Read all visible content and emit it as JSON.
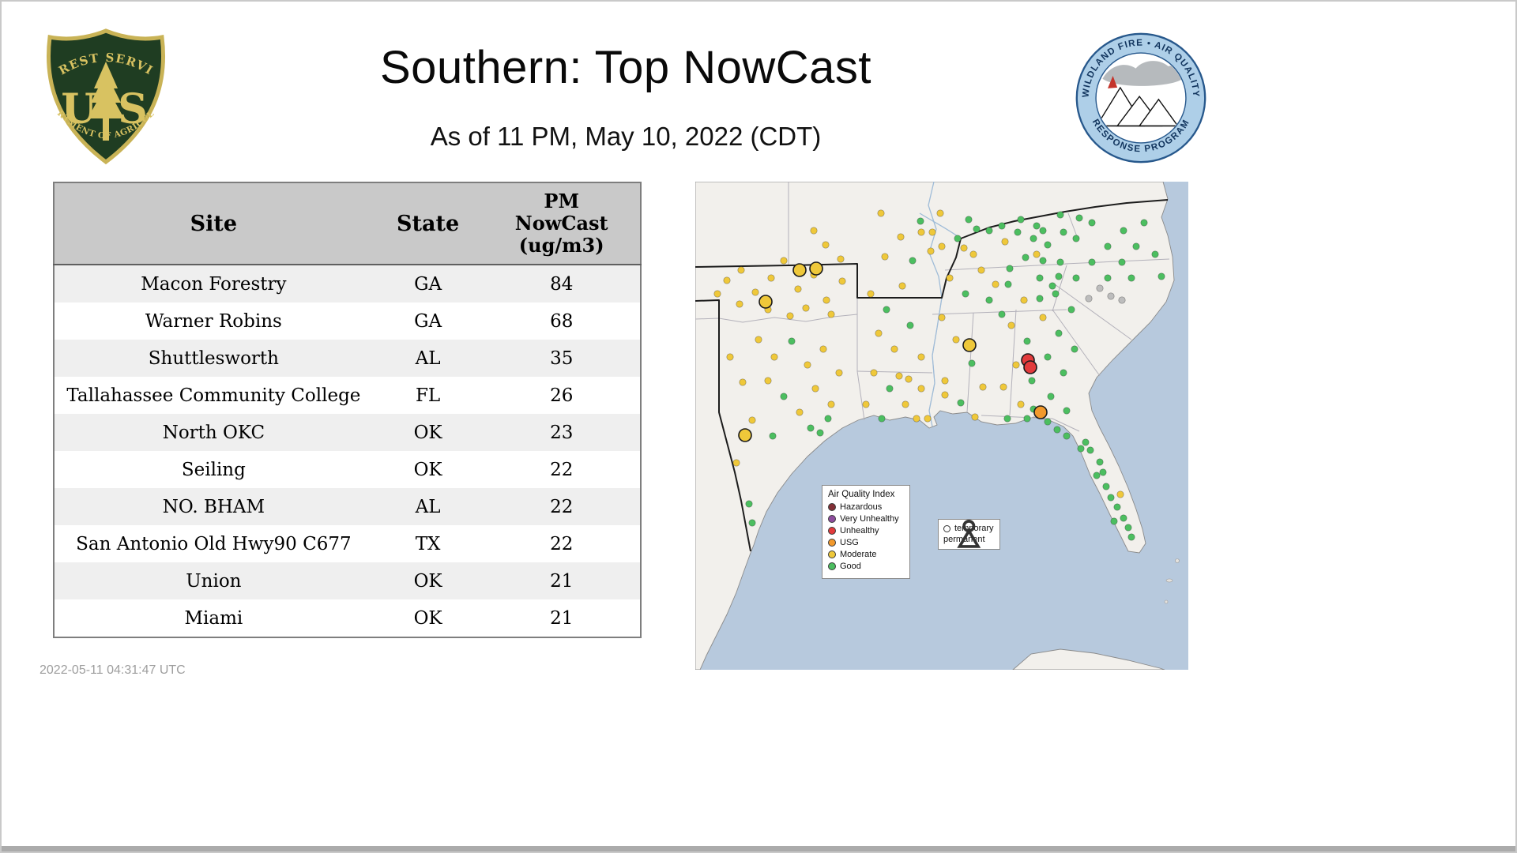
{
  "header": {
    "title": "Southern: Top NowCast",
    "subtitle": "As of 11 PM, May 10, 2022 (CDT)"
  },
  "footer": {
    "timestamp": "2022-05-11 04:31:47 UTC"
  },
  "logos": {
    "forest_service": {
      "top_arc": "FOREST SERVICE",
      "left_letter": "U",
      "right_letter": "S",
      "bottom_arc": "DEPARTMENT OF AGRICULTURE"
    },
    "wfaqrp": {
      "top_arc": "WILDLAND FIRE • AIR QUALITY",
      "bottom_arc": "RESPONSE PROGRAM"
    }
  },
  "chart_data": {
    "type": "table",
    "title": "Southern: Top NowCast",
    "columns": [
      "Site",
      "State",
      "PM NowCast (ug/m3)"
    ],
    "rows": [
      [
        "Macon Forestry",
        "GA",
        "84"
      ],
      [
        "Warner Robins",
        "GA",
        "68"
      ],
      [
        "Shuttlesworth",
        "AL",
        "35"
      ],
      [
        "Tallahassee Community College",
        "FL",
        "26"
      ],
      [
        "North OKC",
        "OK",
        "23"
      ],
      [
        "Seiling",
        "OK",
        "22"
      ],
      [
        "NO. BHAM",
        "AL",
        "22"
      ],
      [
        "San Antonio Old Hwy90 C677",
        "TX",
        "22"
      ],
      [
        "Union",
        "OK",
        "21"
      ],
      [
        "Miami",
        "OK",
        "21"
      ]
    ]
  },
  "table_header": {
    "site": "Site",
    "state": "State",
    "pm": "PM\nNowCast\n(ug/m3)"
  },
  "map": {
    "palette": {
      "good": "#4CBE60",
      "moderate": "#EFC83A",
      "usg": "#F2992C",
      "unhealthy": "#E23B3C",
      "very_unhealthy": "#8E4D9E",
      "hazardous": "#822F36",
      "inactive": "#BDBDBD"
    },
    "colors": {
      "water": "#b7c9dd",
      "land": "#f2f0ec",
      "state_line": "#b3b1ba",
      "region_outline": "#1c1c1c",
      "river": "#9fbcd8"
    },
    "aqi_legend": {
      "title": "Air Quality Index",
      "items": [
        {
          "label": "Hazardous",
          "key": "hazardous"
        },
        {
          "label": "Very Unhealthy",
          "key": "very_unhealthy"
        },
        {
          "label": "Unhealthy",
          "key": "unhealthy"
        },
        {
          "label": "USG",
          "key": "usg"
        },
        {
          "label": "Moderate",
          "key": "moderate"
        },
        {
          "label": "Good",
          "key": "good"
        }
      ]
    },
    "marker_legend": {
      "temporary": "temporary",
      "permanent": "permanent"
    },
    "dots": [
      [
        40,
        125,
        "m"
      ],
      [
        58,
        112,
        "m"
      ],
      [
        76,
        140,
        "m"
      ],
      [
        96,
        122,
        "m"
      ],
      [
        112,
        100,
        "m"
      ],
      [
        130,
        136,
        "m"
      ],
      [
        150,
        118,
        "m"
      ],
      [
        166,
        150,
        "m"
      ],
      [
        186,
        126,
        "m"
      ],
      [
        92,
        162,
        "m"
      ],
      [
        56,
        155,
        "m"
      ],
      [
        140,
        160,
        "m"
      ],
      [
        120,
        170,
        "m"
      ],
      [
        172,
        168,
        "m"
      ],
      [
        28,
        142,
        "m"
      ],
      [
        184,
        98,
        "m"
      ],
      [
        165,
        80,
        "m"
      ],
      [
        150,
        62,
        "m"
      ],
      [
        132,
        112,
        "m",
        "l"
      ],
      [
        153,
        110,
        "m",
        "l"
      ],
      [
        89,
        152,
        "m",
        "l"
      ],
      [
        235,
        40,
        "m"
      ],
      [
        260,
        70,
        "m"
      ],
      [
        285,
        50,
        "g"
      ],
      [
        298,
        88,
        "m"
      ],
      [
        240,
        95,
        "m"
      ],
      [
        275,
        100,
        "g"
      ],
      [
        310,
        40,
        "m"
      ],
      [
        286,
        64,
        "m"
      ],
      [
        80,
        200,
        "m"
      ],
      [
        100,
        222,
        "m"
      ],
      [
        122,
        202,
        "g"
      ],
      [
        142,
        232,
        "m"
      ],
      [
        162,
        212,
        "m"
      ],
      [
        92,
        252,
        "m"
      ],
      [
        112,
        272,
        "g"
      ],
      [
        132,
        292,
        "m"
      ],
      [
        152,
        262,
        "m"
      ],
      [
        172,
        282,
        "m"
      ],
      [
        182,
        242,
        "m"
      ],
      [
        72,
        302,
        "m"
      ],
      [
        98,
        322,
        "g"
      ],
      [
        158,
        318,
        "g"
      ],
      [
        146,
        312,
        "g"
      ],
      [
        168,
        300,
        "g"
      ],
      [
        52,
        356,
        "m"
      ],
      [
        72,
        432,
        "g"
      ],
      [
        68,
        408,
        "g"
      ],
      [
        60,
        254,
        "m"
      ],
      [
        44,
        222,
        "m"
      ],
      [
        63,
        321,
        "m",
        "l"
      ],
      [
        222,
        142,
        "m"
      ],
      [
        242,
        162,
        "g"
      ],
      [
        262,
        132,
        "m"
      ],
      [
        232,
        192,
        "m"
      ],
      [
        252,
        212,
        "m"
      ],
      [
        272,
        182,
        "g"
      ],
      [
        286,
        222,
        "m"
      ],
      [
        226,
        242,
        "m"
      ],
      [
        246,
        262,
        "g"
      ],
      [
        266,
        282,
        "m"
      ],
      [
        286,
        262,
        "m"
      ],
      [
        294,
        300,
        "m"
      ],
      [
        216,
        282,
        "m"
      ],
      [
        236,
        300,
        "g"
      ],
      [
        258,
        246,
        "m"
      ],
      [
        280,
        300,
        "m"
      ],
      [
        270,
        250,
        "m"
      ],
      [
        312,
        82,
        "m"
      ],
      [
        332,
        72,
        "g"
      ],
      [
        352,
        92,
        "m"
      ],
      [
        322,
        122,
        "m"
      ],
      [
        342,
        142,
        "g"
      ],
      [
        362,
        112,
        "m"
      ],
      [
        312,
        172,
        "m"
      ],
      [
        330,
        200,
        "m"
      ],
      [
        350,
        230,
        "g"
      ],
      [
        364,
        260,
        "m"
      ],
      [
        316,
        252,
        "m"
      ],
      [
        336,
        280,
        "g"
      ],
      [
        354,
        298,
        "m"
      ],
      [
        372,
        62,
        "g"
      ],
      [
        392,
        76,
        "m"
      ],
      [
        388,
        56,
        "g"
      ],
      [
        412,
        48,
        "g"
      ],
      [
        432,
        56,
        "g"
      ],
      [
        300,
        64,
        "m"
      ],
      [
        346,
        48,
        "g"
      ],
      [
        356,
        60,
        "g"
      ],
      [
        340,
        84,
        "m"
      ],
      [
        316,
        270,
        "m"
      ],
      [
        380,
        130,
        "m"
      ],
      [
        372,
        150,
        "g"
      ],
      [
        388,
        168,
        "g"
      ],
      [
        396,
        130,
        "g"
      ],
      [
        416,
        150,
        "m"
      ],
      [
        436,
        122,
        "g"
      ],
      [
        456,
        142,
        "g"
      ],
      [
        400,
        182,
        "m"
      ],
      [
        420,
        202,
        "g"
      ],
      [
        440,
        172,
        "m"
      ],
      [
        460,
        192,
        "g"
      ],
      [
        476,
        162,
        "g"
      ],
      [
        406,
        232,
        "m"
      ],
      [
        426,
        252,
        "g"
      ],
      [
        446,
        222,
        "g"
      ],
      [
        466,
        242,
        "g"
      ],
      [
        480,
        212,
        "g"
      ],
      [
        412,
        282,
        "m"
      ],
      [
        428,
        288,
        "g"
      ],
      [
        450,
        272,
        "g"
      ],
      [
        470,
        290,
        "g"
      ],
      [
        390,
        260,
        "m"
      ],
      [
        436,
        148,
        "g"
      ],
      [
        460,
        120,
        "g"
      ],
      [
        398,
        110,
        "g"
      ],
      [
        418,
        96,
        "g"
      ],
      [
        440,
        100,
        "g"
      ],
      [
        428,
        72,
        "g"
      ],
      [
        408,
        64,
        "g"
      ],
      [
        446,
        80,
        "g"
      ],
      [
        347,
        207,
        "m",
        "l"
      ],
      [
        421,
        226,
        "r",
        "l"
      ],
      [
        424,
        235,
        "r",
        "l"
      ],
      [
        437,
        292,
        "u",
        "l"
      ],
      [
        440,
        62,
        "g"
      ],
      [
        462,
        42,
        "g"
      ],
      [
        482,
        72,
        "g"
      ],
      [
        502,
        52,
        "g"
      ],
      [
        522,
        82,
        "g"
      ],
      [
        542,
        62,
        "g"
      ],
      [
        462,
        102,
        "g"
      ],
      [
        482,
        122,
        "g"
      ],
      [
        502,
        102,
        "g"
      ],
      [
        522,
        122,
        "g"
      ],
      [
        540,
        102,
        "g"
      ],
      [
        558,
        82,
        "g"
      ],
      [
        552,
        122,
        "g"
      ],
      [
        432,
        92,
        "m"
      ],
      [
        452,
        132,
        "g"
      ],
      [
        568,
        52,
        "g"
      ],
      [
        582,
        92,
        "g"
      ],
      [
        590,
        120,
        "g"
      ],
      [
        466,
        64,
        "g"
      ],
      [
        486,
        46,
        "g"
      ],
      [
        512,
        135,
        "x"
      ],
      [
        526,
        145,
        "x"
      ],
      [
        498,
        148,
        "x"
      ],
      [
        540,
        150,
        "x"
      ],
      [
        500,
        340,
        "g"
      ],
      [
        512,
        355,
        "g"
      ],
      [
        508,
        372,
        "g"
      ],
      [
        520,
        386,
        "g"
      ],
      [
        526,
        400,
        "g"
      ],
      [
        534,
        412,
        "g"
      ],
      [
        542,
        426,
        "g"
      ],
      [
        548,
        438,
        "g"
      ],
      [
        552,
        450,
        "g"
      ],
      [
        494,
        330,
        "g"
      ],
      [
        488,
        338,
        "g"
      ],
      [
        516,
        368,
        "g"
      ],
      [
        530,
        430,
        "g"
      ],
      [
        538,
        396,
        "m"
      ],
      [
        395,
        300,
        "g"
      ],
      [
        420,
        300,
        "g"
      ],
      [
        446,
        304,
        "g"
      ],
      [
        458,
        314,
        "g"
      ],
      [
        470,
        322,
        "g"
      ]
    ]
  }
}
